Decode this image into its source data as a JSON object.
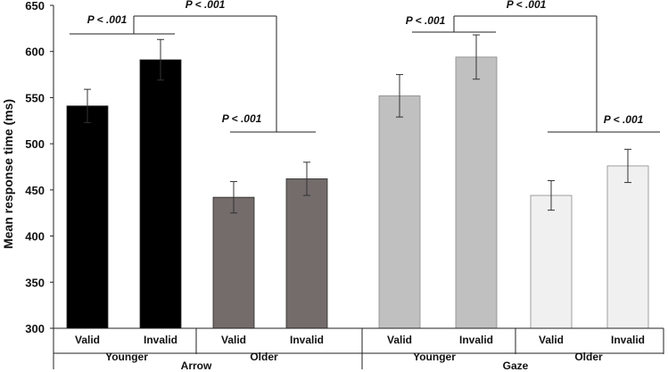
{
  "chart_data": {
    "type": "bar",
    "ylabel": "Mean response time (ms)",
    "ylim": [
      300,
      650
    ],
    "yticks": [
      300,
      350,
      400,
      450,
      500,
      550,
      600,
      650
    ],
    "grid": false,
    "bars": [
      {
        "cue": "Arrow",
        "age": "Younger",
        "validity": "Valid",
        "value": 541,
        "error": 18,
        "color": "#000000"
      },
      {
        "cue": "Arrow",
        "age": "Younger",
        "validity": "Invalid",
        "value": 591,
        "error": 22,
        "color": "#000000"
      },
      {
        "cue": "Arrow",
        "age": "Older",
        "validity": "Valid",
        "value": 442,
        "error": 17,
        "color": "#736c6b"
      },
      {
        "cue": "Arrow",
        "age": "Older",
        "validity": "Invalid",
        "value": 462,
        "error": 18,
        "color": "#736c6b"
      },
      {
        "cue": "Gaze",
        "age": "Younger",
        "validity": "Valid",
        "value": 552,
        "error": 23,
        "color": "#c0c0c0"
      },
      {
        "cue": "Gaze",
        "age": "Younger",
        "validity": "Invalid",
        "value": 594,
        "error": 24,
        "color": "#c0c0c0"
      },
      {
        "cue": "Gaze",
        "age": "Older",
        "validity": "Valid",
        "value": 444,
        "error": 16,
        "color": "#f0f0f0"
      },
      {
        "cue": "Gaze",
        "age": "Older",
        "validity": "Invalid",
        "value": 476,
        "error": 18,
        "color": "#f0f0f0"
      }
    ],
    "category_labels": {
      "validity": [
        "Valid",
        "Invalid",
        "Valid",
        "Invalid",
        "Valid",
        "Invalid",
        "Valid",
        "Invalid"
      ],
      "age": [
        "Younger",
        "Older",
        "Younger",
        "Older"
      ],
      "cue": [
        "Arrow",
        "Gaze"
      ]
    },
    "annotations": [
      {
        "text": "P < .001",
        "between": "Arrow Younger Valid vs Invalid"
      },
      {
        "text": "P < .001",
        "between": "Arrow Younger vs Arrow Older"
      },
      {
        "text": "P < .001",
        "between": "Arrow Older Valid vs Invalid"
      },
      {
        "text": "P < .001",
        "between": "Gaze Younger Valid vs Invalid"
      },
      {
        "text": "P < .001",
        "between": "Gaze Younger vs Gaze Older"
      },
      {
        "text": "P < .001",
        "between": "Gaze Older Valid vs Invalid"
      }
    ]
  }
}
